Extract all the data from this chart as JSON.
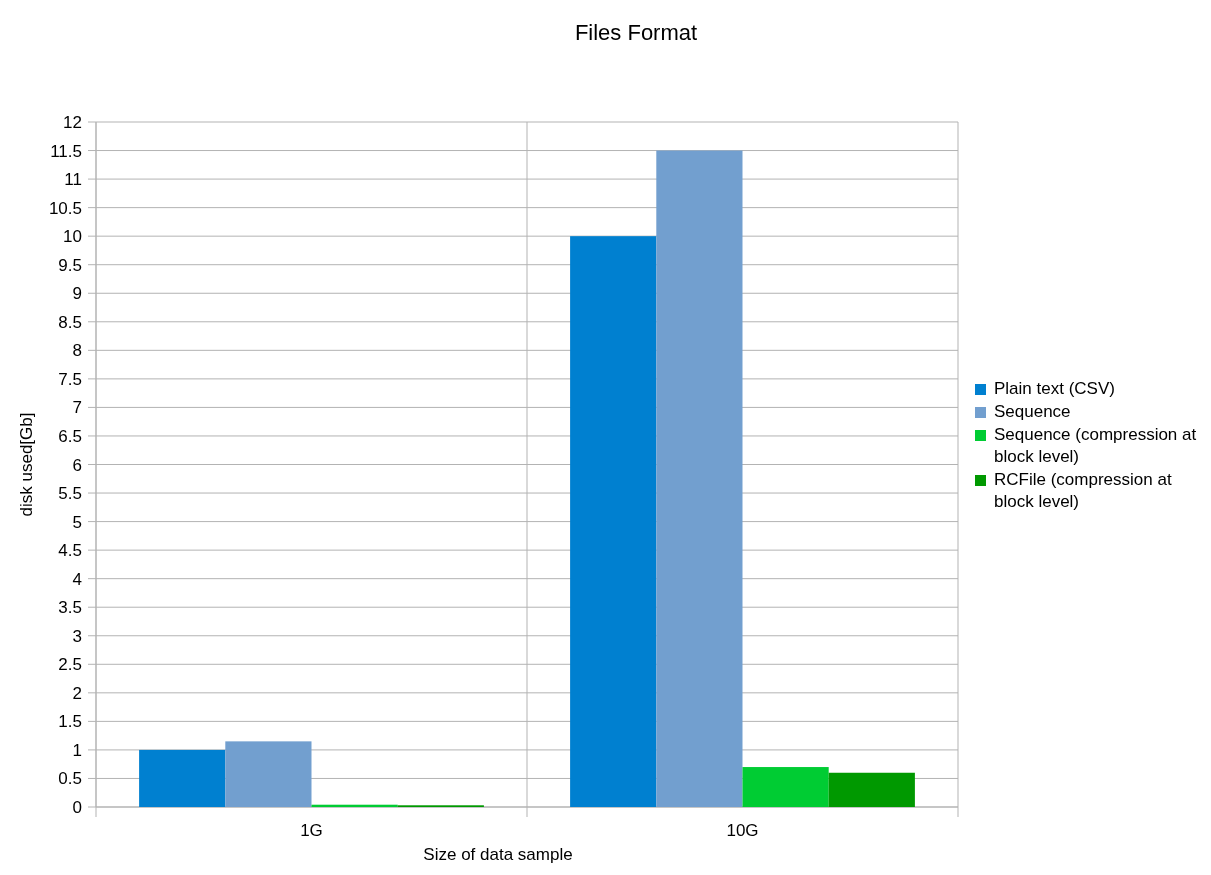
{
  "chart_data": {
    "type": "bar",
    "title": "Files Format",
    "xlabel": "Size of data sample",
    "ylabel": "disk used[Gb]",
    "categories": [
      "1G",
      "10G"
    ],
    "series": [
      {
        "name": "Plain text (CSV)",
        "color": "#0080d0",
        "values": [
          1.0,
          10.0
        ]
      },
      {
        "name": "Sequence",
        "color": "#729fcf",
        "values": [
          1.15,
          11.5
        ]
      },
      {
        "name": "Sequence (compression at block level)",
        "color": "#00cc33",
        "values": [
          0.04,
          0.7
        ]
      },
      {
        "name": "RCFile (compression at block level)",
        "color": "#009900",
        "values": [
          0.03,
          0.6
        ]
      }
    ],
    "ylim": [
      0,
      12
    ],
    "yticks": [
      0,
      0.5,
      1,
      1.5,
      2,
      2.5,
      3,
      3.5,
      4,
      4.5,
      5,
      5.5,
      6,
      6.5,
      7,
      7.5,
      8,
      8.5,
      9,
      9.5,
      10,
      10.5,
      11,
      11.5,
      12
    ],
    "grid": true,
    "legend": "right"
  }
}
